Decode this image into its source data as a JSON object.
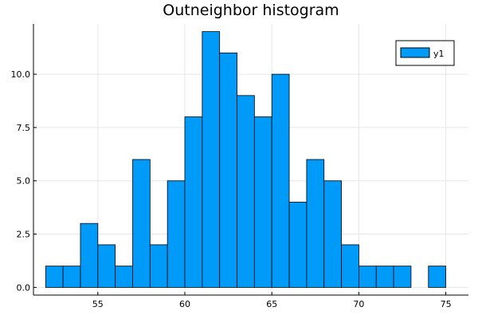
{
  "chart_data": {
    "type": "bar",
    "title": "Outneighbor histogram",
    "xlabel": "",
    "ylabel": "",
    "bin_width": 1,
    "bins": [
      {
        "x0": 52,
        "x1": 53,
        "count": 1
      },
      {
        "x0": 53,
        "x1": 54,
        "count": 1
      },
      {
        "x0": 54,
        "x1": 55,
        "count": 3
      },
      {
        "x0": 55,
        "x1": 56,
        "count": 2
      },
      {
        "x0": 56,
        "x1": 57,
        "count": 1
      },
      {
        "x0": 57,
        "x1": 58,
        "count": 6
      },
      {
        "x0": 58,
        "x1": 59,
        "count": 2
      },
      {
        "x0": 59,
        "x1": 60,
        "count": 5
      },
      {
        "x0": 60,
        "x1": 61,
        "count": 8
      },
      {
        "x0": 61,
        "x1": 62,
        "count": 12
      },
      {
        "x0": 62,
        "x1": 63,
        "count": 11
      },
      {
        "x0": 63,
        "x1": 64,
        "count": 9
      },
      {
        "x0": 64,
        "x1": 65,
        "count": 8
      },
      {
        "x0": 65,
        "x1": 66,
        "count": 10
      },
      {
        "x0": 66,
        "x1": 67,
        "count": 4
      },
      {
        "x0": 67,
        "x1": 68,
        "count": 6
      },
      {
        "x0": 68,
        "x1": 69,
        "count": 5
      },
      {
        "x0": 69,
        "x1": 70,
        "count": 2
      },
      {
        "x0": 70,
        "x1": 71,
        "count": 1
      },
      {
        "x0": 71,
        "x1": 72,
        "count": 1
      },
      {
        "x0": 72,
        "x1": 73,
        "count": 1
      },
      {
        "x0": 73,
        "x1": 74,
        "count": 0
      },
      {
        "x0": 74,
        "x1": 75,
        "count": 1
      }
    ],
    "series": [
      {
        "name": "y1",
        "color": "#009af9"
      }
    ],
    "xlim": [
      51.3,
      76.3
    ],
    "ylim": [
      -0.36,
      12.36
    ],
    "xticks": [
      {
        "value": 55,
        "label": "55"
      },
      {
        "value": 60,
        "label": "60"
      },
      {
        "value": 65,
        "label": "65"
      },
      {
        "value": 70,
        "label": "70"
      },
      {
        "value": 75,
        "label": "75"
      }
    ],
    "yticks": [
      {
        "value": 0,
        "label": "0.0"
      },
      {
        "value": 2.5,
        "label": "2.5"
      },
      {
        "value": 5,
        "label": "5.0"
      },
      {
        "value": 7.5,
        "label": "7.5"
      },
      {
        "value": 10,
        "label": "10.0"
      }
    ],
    "grid": true,
    "legend_position": "top-right",
    "colors": {
      "bar": "#009af9",
      "bar_outline": "#000000",
      "grid": "#e6e6e6",
      "axis": "#000000"
    }
  }
}
